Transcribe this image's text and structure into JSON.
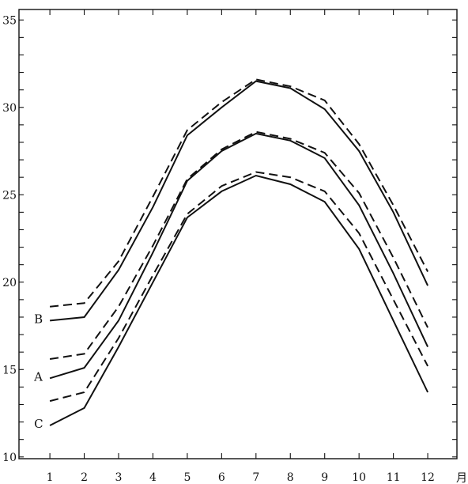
{
  "chart_data": {
    "type": "line",
    "x": [
      1,
      2,
      3,
      4,
      5,
      6,
      7,
      8,
      9,
      10,
      11,
      12
    ],
    "x_tick_labels": [
      "1",
      "2",
      "3",
      "4",
      "5",
      "6",
      "7",
      "8",
      "9",
      "10",
      "11",
      "12"
    ],
    "x_unit": "月",
    "y_ticks": [
      10,
      15,
      20,
      25,
      30,
      35
    ],
    "ylim": [
      9.9,
      35.6
    ],
    "xlim": [
      0.1,
      12.85
    ],
    "grid": false,
    "legend": "none",
    "series": [
      {
        "name": "B",
        "style": "solid",
        "values": [
          17.8,
          18.0,
          20.7,
          24.3,
          28.4,
          30.0,
          31.5,
          31.1,
          29.9,
          27.5,
          24.0,
          19.8
        ]
      },
      {
        "name": "",
        "style": "dashed",
        "values": [
          18.6,
          18.8,
          21.2,
          24.9,
          28.7,
          30.3,
          31.6,
          31.2,
          30.4,
          27.9,
          24.4,
          20.6
        ]
      },
      {
        "name": "A",
        "style": "solid",
        "values": [
          14.5,
          15.1,
          17.8,
          21.7,
          25.8,
          27.5,
          28.5,
          28.1,
          27.1,
          24.4,
          20.5,
          16.3
        ]
      },
      {
        "name": "",
        "style": "dashed",
        "values": [
          15.6,
          15.9,
          18.6,
          22.1,
          25.9,
          27.6,
          28.6,
          28.2,
          27.4,
          25.1,
          21.4,
          17.4
        ]
      },
      {
        "name": "C",
        "style": "solid",
        "values": [
          11.8,
          12.8,
          16.3,
          20.0,
          23.7,
          25.2,
          26.1,
          25.6,
          24.6,
          21.9,
          17.8,
          13.7
        ]
      },
      {
        "name": "",
        "style": "dashed",
        "values": [
          13.2,
          13.7,
          16.8,
          20.4,
          23.9,
          25.5,
          26.3,
          26.0,
          25.2,
          22.8,
          19.0,
          15.2
        ]
      }
    ]
  }
}
